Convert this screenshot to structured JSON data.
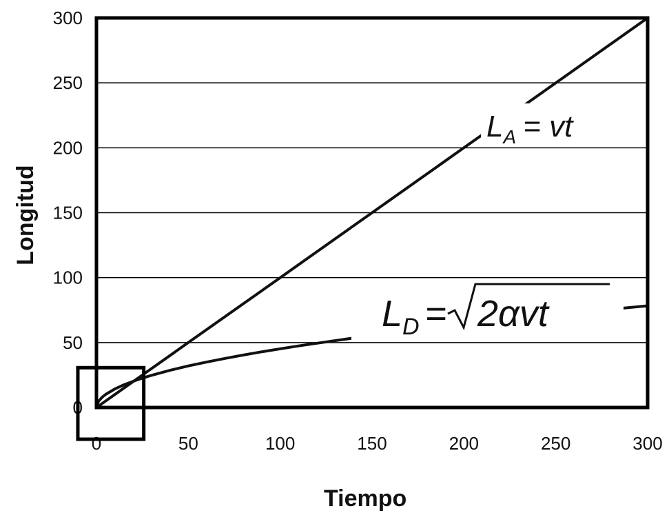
{
  "chart_data": {
    "type": "line",
    "title": "",
    "xlabel": "Tiempo",
    "ylabel": "Longitud",
    "xlim": [
      0,
      300
    ],
    "ylim": [
      0,
      300
    ],
    "xticks": [
      "0",
      "50",
      "100",
      "150",
      "200",
      "250",
      "300"
    ],
    "yticks": [
      "0",
      "50",
      "100",
      "150",
      "200",
      "250",
      "300"
    ],
    "grid": "horizontal",
    "series": [
      {
        "color": "#111111",
        "x": [
          0,
          25,
          50,
          75,
          100,
          125,
          150,
          175,
          200,
          225,
          250,
          275,
          300
        ],
        "y": [
          0,
          25,
          50,
          75,
          100,
          125,
          150,
          175,
          200,
          225,
          250,
          275,
          300
        ]
      },
      {
        "color": "#111111",
        "x": [
          0,
          1,
          3,
          5,
          10,
          15,
          20,
          25,
          30,
          40,
          50,
          60,
          70,
          80,
          90,
          100,
          110,
          120,
          130,
          140,
          150,
          175,
          200,
          225,
          250,
          275,
          300
        ],
        "y": [
          0,
          4.5,
          7.8,
          10.1,
          14.3,
          17.5,
          20.2,
          22.6,
          24.8,
          28.6,
          32,
          35,
          37.8,
          40.4,
          42.9,
          45.2,
          47.4,
          49.5,
          51.5,
          53.5,
          55.4,
          59.8,
          63.9,
          67.8,
          71.4,
          74.9,
          78.3
        ]
      }
    ],
    "annotations": [
      {
        "id": "la",
        "prefix": "L",
        "sub": "A",
        "rest": "= vt"
      },
      {
        "id": "ld",
        "prefix": "L",
        "sub": "D",
        "rest": "= ",
        "radical": "2αvt"
      }
    ],
    "highlight_box": {
      "x": [
        0,
        25
      ],
      "y": [
        0,
        28
      ]
    }
  }
}
